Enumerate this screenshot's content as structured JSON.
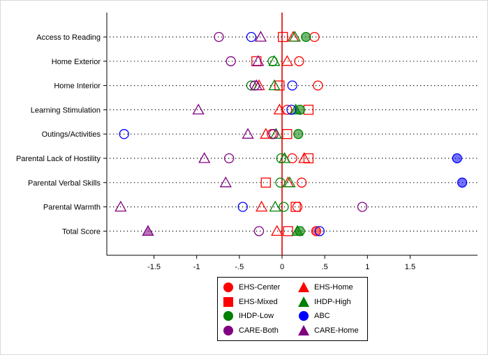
{
  "chart_data": {
    "type": "scatter",
    "orientation": "horizontal",
    "title": "",
    "xlabel": "",
    "ylabel": "",
    "xlim": [
      -2.05,
      2.05
    ],
    "xticks": [
      -1.5,
      -1,
      -0.5,
      0,
      0.5,
      1,
      1.5
    ],
    "xtick_labels": [
      "-1.5",
      "-1",
      "-.5",
      "0",
      ".5",
      "1",
      "1.5"
    ],
    "grid": "dotted horizontal lines per category",
    "reference_line": {
      "x": 0,
      "color": "#dd0000"
    },
    "legend_position": "bottom",
    "categories": [
      "Access to Reading",
      "Home Exterior",
      "Home Interior",
      "Learning Stimulation",
      "Outings/Activities",
      "Parental Lack of Hostility",
      "Parental Verbal Skills",
      "Parental Warmth",
      "Total Score"
    ],
    "series": [
      {
        "name": "EHS-Center",
        "shape": "circle",
        "color": "#ff0000",
        "values": [
          0.38,
          0.2,
          0.42,
          0.06,
          -0.12,
          0.12,
          0.23,
          0.18,
          0.4
        ],
        "filled": [
          false,
          false,
          false,
          false,
          false,
          false,
          false,
          false,
          true
        ]
      },
      {
        "name": "EHS-Home",
        "shape": "triangle",
        "color": "#ff0000",
        "values": [
          0.13,
          0.06,
          -0.27,
          -0.03,
          -0.19,
          0.26,
          0.07,
          -0.24,
          -0.06
        ],
        "filled": [
          false,
          false,
          false,
          false,
          false,
          false,
          false,
          false,
          false
        ]
      },
      {
        "name": "EHS-Mixed",
        "shape": "square",
        "color": "#ff0000",
        "values": [
          0.01,
          -0.3,
          -0.03,
          0.31,
          0.06,
          0.31,
          -0.19,
          0.16,
          0.07
        ],
        "filled": [
          false,
          false,
          false,
          false,
          false,
          false,
          false,
          false,
          false
        ]
      },
      {
        "name": "IHDP-High",
        "shape": "triangle",
        "color": "#008000",
        "values": [
          0.15,
          -0.09,
          -0.09,
          0.16,
          -0.07,
          0.03,
          0.09,
          -0.08,
          0.18
        ],
        "filled": [
          false,
          false,
          false,
          true,
          false,
          false,
          false,
          false,
          true
        ]
      },
      {
        "name": "IHDP-Low",
        "shape": "circle",
        "color": "#008000",
        "values": [
          0.28,
          -0.11,
          -0.36,
          0.21,
          0.19,
          -0.01,
          -0.02,
          0.02,
          0.21
        ],
        "filled": [
          true,
          false,
          false,
          true,
          true,
          false,
          false,
          false,
          true
        ]
      },
      {
        "name": "ABC",
        "shape": "circle",
        "color": "#0000ff",
        "values": [
          -0.36,
          null,
          0.12,
          0.11,
          -1.85,
          2.05,
          2.11,
          -0.46,
          0.44
        ],
        "filled": [
          false,
          false,
          false,
          false,
          false,
          true,
          true,
          false,
          false
        ]
      },
      {
        "name": "CARE-Both",
        "shape": "circle",
        "color": "#800080",
        "values": [
          -0.74,
          -0.6,
          -0.32,
          null,
          -0.1,
          -0.62,
          null,
          0.94,
          -0.27
        ],
        "filled": [
          false,
          false,
          false,
          false,
          false,
          false,
          false,
          false,
          false
        ]
      },
      {
        "name": "CARE-Home",
        "shape": "triangle",
        "color": "#800080",
        "values": [
          -0.25,
          -0.28,
          -0.3,
          -0.98,
          -0.4,
          -0.91,
          -0.66,
          -1.89,
          -1.57
        ],
        "filled": [
          false,
          false,
          false,
          false,
          false,
          false,
          false,
          false,
          true
        ]
      }
    ]
  },
  "legend": [
    {
      "label": "EHS-Center",
      "shape": "circle",
      "color": "#ff0000"
    },
    {
      "label": "EHS-Home",
      "shape": "triangle",
      "color": "#ff0000"
    },
    {
      "label": "EHS-Mixed",
      "shape": "square",
      "color": "#ff0000"
    },
    {
      "label": "IHDP-High",
      "shape": "triangle",
      "color": "#008000"
    },
    {
      "label": "IHDP-Low",
      "shape": "circle",
      "color": "#008000"
    },
    {
      "label": "ABC",
      "shape": "circle",
      "color": "#0000ff"
    },
    {
      "label": "CARE-Both",
      "shape": "circle",
      "color": "#800080"
    },
    {
      "label": "CARE-Home",
      "shape": "triangle",
      "color": "#800080"
    }
  ]
}
